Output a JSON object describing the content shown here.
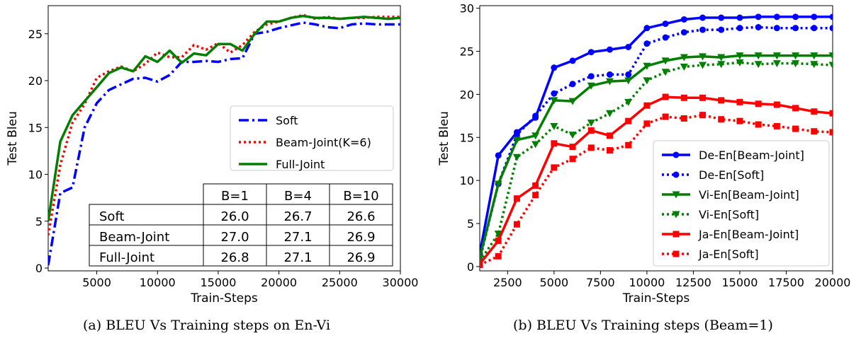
{
  "captions": {
    "a": "(a) BLEU Vs Training steps on En-Vi",
    "b": "(b) BLEU Vs Training steps (Beam=1)"
  },
  "chart_data": [
    {
      "type": "line",
      "title": "",
      "xlabel": "Train-Steps",
      "ylabel": "Test Bleu",
      "xlim": [
        1000,
        30000
      ],
      "ylim": [
        -0.3,
        28
      ],
      "xticks": [
        5000,
        10000,
        15000,
        20000,
        25000,
        30000
      ],
      "yticks": [
        0,
        5,
        10,
        15,
        20,
        25
      ],
      "grid": false,
      "legend_position": "center-right",
      "series": [
        {
          "name": "Soft",
          "color": "#0000ff",
          "style": "dashdot",
          "x": [
            1000,
            2000,
            3000,
            4000,
            5000,
            6000,
            7000,
            8000,
            9000,
            10000,
            11000,
            12000,
            13000,
            14000,
            15000,
            16000,
            17000,
            18000,
            19000,
            20000,
            21000,
            22000,
            23000,
            24000,
            25000,
            26000,
            27000,
            28000,
            29000,
            30000
          ],
          "values": [
            0.3,
            8.0,
            8.6,
            15.0,
            17.6,
            19.0,
            19.6,
            20.2,
            20.3,
            19.9,
            20.6,
            22.0,
            22.0,
            22.1,
            22.0,
            22.3,
            22.4,
            25.0,
            25.2,
            25.6,
            25.9,
            26.2,
            26.0,
            25.7,
            25.6,
            26.0,
            26.1,
            26.0,
            26.0,
            26.0
          ]
        },
        {
          "name": "Beam-Joint(K=6)",
          "color": "#ff0000",
          "style": "dotted",
          "x": [
            1000,
            2000,
            3000,
            4000,
            5000,
            6000,
            7000,
            8000,
            9000,
            10000,
            11000,
            12000,
            13000,
            14000,
            15000,
            16000,
            17000,
            18000,
            19000,
            20000,
            21000,
            22000,
            23000,
            24000,
            25000,
            26000,
            27000,
            28000,
            29000,
            30000
          ],
          "values": [
            3.5,
            11.0,
            15.5,
            17.5,
            20.3,
            21.0,
            21.5,
            21.0,
            21.8,
            23.0,
            22.5,
            22.5,
            23.8,
            23.3,
            24.0,
            23.0,
            23.8,
            25.2,
            26.0,
            26.3,
            26.7,
            27.0,
            26.6,
            26.8,
            26.6,
            26.7,
            26.7,
            26.8,
            26.8,
            26.8
          ]
        },
        {
          "name": "Full-Joint",
          "color": "#007f00",
          "style": "solid",
          "x": [
            1000,
            2000,
            3000,
            4000,
            5000,
            6000,
            7000,
            8000,
            9000,
            10000,
            11000,
            12000,
            13000,
            14000,
            15000,
            16000,
            17000,
            18000,
            19000,
            20000,
            21000,
            22000,
            23000,
            24000,
            25000,
            26000,
            27000,
            28000,
            29000,
            30000
          ],
          "values": [
            5.0,
            13.5,
            16.3,
            17.8,
            19.3,
            20.8,
            21.4,
            21.0,
            22.6,
            22.0,
            23.2,
            21.9,
            22.9,
            22.7,
            23.9,
            23.9,
            23.2,
            25.0,
            26.3,
            26.3,
            26.7,
            26.9,
            26.7,
            26.7,
            26.6,
            26.7,
            26.8,
            26.7,
            26.6,
            26.7
          ]
        }
      ],
      "table": {
        "headers": [
          "",
          "B=1",
          "B=4",
          "B=10"
        ],
        "rows": [
          [
            "Soft",
            "26.0",
            "26.7",
            "26.6"
          ],
          [
            "Beam-Joint",
            "27.0",
            "27.1",
            "26.9"
          ],
          [
            "Full-Joint",
            "26.8",
            "27.1",
            "26.9"
          ]
        ]
      }
    },
    {
      "type": "line",
      "title": "",
      "xlabel": "Train-Steps",
      "ylabel": "Test Bleu",
      "xlim": [
        1000,
        20000
      ],
      "ylim": [
        -0.5,
        30.3
      ],
      "xticks": [
        2500,
        5000,
        7500,
        10000,
        12500,
        15000,
        17500,
        20000
      ],
      "yticks": [
        0,
        5,
        10,
        15,
        20,
        25,
        30
      ],
      "grid": false,
      "legend_position": "lower-right",
      "series": [
        {
          "name": "De-En[Beam-Joint]",
          "color": "#0000ff",
          "style": "solid",
          "marker": "circle",
          "x": [
            1000,
            2000,
            3000,
            4000,
            5000,
            6000,
            7000,
            8000,
            9000,
            10000,
            11000,
            12000,
            13000,
            14000,
            15000,
            16000,
            17000,
            18000,
            19000,
            20000
          ],
          "values": [
            1.5,
            12.9,
            15.6,
            17.3,
            23.1,
            23.9,
            24.9,
            25.2,
            25.5,
            27.7,
            28.2,
            28.7,
            28.9,
            28.9,
            28.9,
            29.0,
            29.0,
            29.0,
            29.0,
            29.0
          ]
        },
        {
          "name": "De-En[Soft]",
          "color": "#0000ff",
          "style": "dotted",
          "marker": "circle",
          "x": [
            1000,
            2000,
            3000,
            4000,
            5000,
            6000,
            7000,
            8000,
            9000,
            10000,
            11000,
            12000,
            13000,
            14000,
            15000,
            16000,
            17000,
            18000,
            19000,
            20000
          ],
          "values": [
            0.8,
            9.6,
            15.3,
            17.5,
            20.1,
            21.2,
            22.1,
            22.3,
            22.3,
            25.9,
            26.6,
            27.2,
            27.5,
            27.5,
            27.7,
            27.8,
            27.7,
            27.7,
            27.7,
            27.7
          ]
        },
        {
          "name": "Vi-En[Beam-Joint]",
          "color": "#007f00",
          "style": "solid",
          "marker": "triangle-down",
          "x": [
            1000,
            2000,
            3000,
            4000,
            5000,
            6000,
            7000,
            8000,
            9000,
            10000,
            11000,
            12000,
            13000,
            14000,
            15000,
            16000,
            17000,
            18000,
            19000,
            20000
          ],
          "values": [
            1.0,
            9.6,
            14.7,
            15.2,
            19.3,
            19.2,
            21.0,
            21.5,
            21.6,
            23.3,
            23.9,
            24.3,
            24.4,
            24.3,
            24.5,
            24.5,
            24.5,
            24.5,
            24.5,
            24.5
          ]
        },
        {
          "name": "Vi-En[Soft]",
          "color": "#007f00",
          "style": "dotted",
          "marker": "triangle-down",
          "x": [
            1000,
            2000,
            3000,
            4000,
            5000,
            6000,
            7000,
            8000,
            9000,
            10000,
            11000,
            12000,
            13000,
            14000,
            15000,
            16000,
            17000,
            18000,
            19000,
            20000
          ],
          "values": [
            0.6,
            3.8,
            12.7,
            14.2,
            16.3,
            15.3,
            16.7,
            17.8,
            19.1,
            21.6,
            22.6,
            23.2,
            23.4,
            23.5,
            23.7,
            23.5,
            23.6,
            23.6,
            23.5,
            23.4
          ]
        },
        {
          "name": "Ja-En[Beam-Joint]",
          "color": "#ff0000",
          "style": "solid",
          "marker": "square",
          "x": [
            1000,
            2000,
            3000,
            4000,
            5000,
            6000,
            7000,
            8000,
            9000,
            10000,
            11000,
            12000,
            13000,
            14000,
            15000,
            16000,
            17000,
            18000,
            19000,
            20000
          ],
          "values": [
            0.3,
            3.0,
            7.9,
            9.4,
            14.3,
            13.9,
            15.8,
            15.2,
            16.9,
            18.7,
            19.7,
            19.6,
            19.6,
            19.3,
            19.1,
            18.9,
            18.8,
            18.4,
            18.0,
            17.8
          ]
        },
        {
          "name": "Ja-En[Soft]",
          "color": "#ff0000",
          "style": "dotted",
          "marker": "square",
          "x": [
            1000,
            2000,
            3000,
            4000,
            5000,
            6000,
            7000,
            8000,
            9000,
            10000,
            11000,
            12000,
            13000,
            14000,
            15000,
            16000,
            17000,
            18000,
            19000,
            20000
          ],
          "values": [
            0.2,
            1.2,
            4.9,
            8.3,
            11.5,
            12.5,
            13.8,
            13.5,
            14.1,
            16.6,
            17.4,
            17.2,
            17.6,
            17.1,
            16.9,
            16.5,
            16.3,
            16.0,
            15.7,
            15.6
          ]
        }
      ]
    }
  ]
}
